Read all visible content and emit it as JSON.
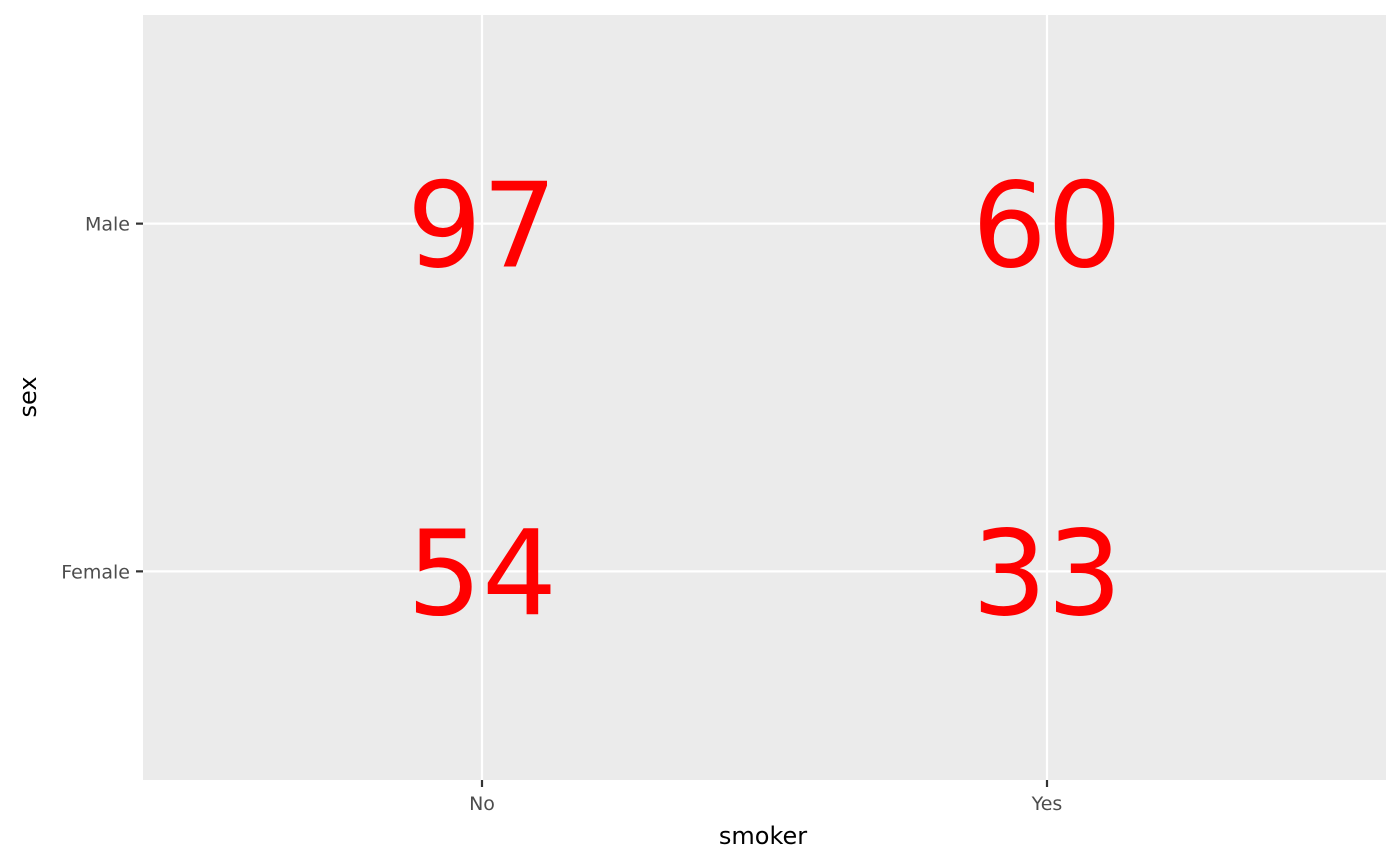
{
  "chart_data": {
    "type": "table",
    "x_categories": [
      "No",
      "Yes"
    ],
    "y_categories": [
      "Female",
      "Male"
    ],
    "xlabel": "smoker",
    "ylabel": "sex",
    "cells": [
      {
        "x": "No",
        "y": "Male",
        "label": "97"
      },
      {
        "x": "Yes",
        "y": "Male",
        "label": "60"
      },
      {
        "x": "No",
        "y": "Female",
        "label": "54"
      },
      {
        "x": "Yes",
        "y": "Female",
        "label": "33"
      }
    ],
    "grid": true,
    "colors": {
      "panel_background": "#EBEBEB",
      "grid_line": "#FFFFFF",
      "label_text": "#FF0000",
      "tick_mark": "#333333"
    }
  }
}
